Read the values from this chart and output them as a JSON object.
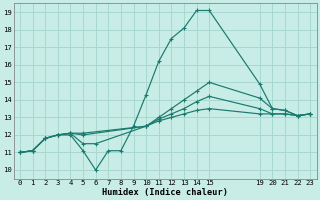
{
  "xlabel": "Humidex (Indice chaleur)",
  "bg_color": "#c8ece6",
  "grid_color": "#a8d8d0",
  "line_color": "#1a7a6e",
  "xlim": [
    -0.5,
    23.5
  ],
  "ylim": [
    9.5,
    19.5
  ],
  "xticks": [
    0,
    1,
    2,
    3,
    4,
    5,
    6,
    7,
    8,
    9,
    10,
    11,
    12,
    13,
    14,
    15,
    19,
    20,
    21,
    22,
    23
  ],
  "yticks": [
    10,
    11,
    12,
    13,
    14,
    15,
    16,
    17,
    18,
    19
  ],
  "series": [
    {
      "x": [
        0,
        1,
        2,
        3,
        4,
        5,
        6,
        7,
        8,
        9,
        10,
        11,
        12,
        13,
        14,
        15,
        19,
        20,
        21,
        22,
        23
      ],
      "y": [
        11.0,
        11.1,
        11.8,
        12.0,
        12.0,
        11.1,
        10.0,
        11.1,
        11.1,
        12.5,
        14.3,
        16.2,
        17.5,
        18.1,
        19.1,
        19.1,
        14.9,
        13.5,
        13.4,
        13.1,
        13.2
      ]
    },
    {
      "x": [
        0,
        1,
        2,
        3,
        4,
        5,
        6,
        10,
        11,
        12,
        13,
        14,
        15,
        19,
        20,
        21,
        22,
        23
      ],
      "y": [
        11.0,
        11.1,
        11.8,
        12.0,
        12.1,
        11.5,
        11.5,
        12.5,
        13.0,
        13.5,
        14.0,
        14.5,
        15.0,
        14.1,
        13.5,
        13.4,
        13.1,
        13.2
      ]
    },
    {
      "x": [
        0,
        1,
        2,
        3,
        4,
        5,
        10,
        11,
        12,
        13,
        14,
        15,
        19,
        20,
        21,
        22,
        23
      ],
      "y": [
        11.0,
        11.1,
        11.8,
        12.0,
        12.1,
        12.0,
        12.5,
        12.9,
        13.2,
        13.5,
        13.9,
        14.2,
        13.5,
        13.2,
        13.2,
        13.1,
        13.2
      ]
    },
    {
      "x": [
        0,
        1,
        2,
        3,
        4,
        5,
        10,
        11,
        12,
        13,
        14,
        15,
        19,
        20,
        21,
        22,
        23
      ],
      "y": [
        11.0,
        11.1,
        11.8,
        12.0,
        12.1,
        12.1,
        12.5,
        12.8,
        13.0,
        13.2,
        13.4,
        13.5,
        13.2,
        13.2,
        13.2,
        13.1,
        13.2
      ]
    }
  ]
}
